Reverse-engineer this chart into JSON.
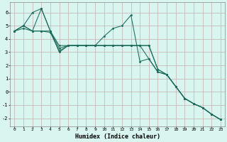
{
  "title": "",
  "xlabel": "Humidex (Indice chaleur)",
  "ylabel": "",
  "bg_color": "#d8f5f0",
  "grid_color": "#c8b8b8",
  "line_color": "#1a6b5a",
  "xlim": [
    -0.5,
    23.5
  ],
  "ylim": [
    -2.6,
    6.8
  ],
  "xticks": [
    0,
    1,
    2,
    3,
    4,
    5,
    6,
    7,
    8,
    9,
    10,
    11,
    12,
    13,
    14,
    15,
    16,
    17,
    18,
    19,
    20,
    21,
    22,
    23
  ],
  "yticks": [
    -2,
    -1,
    0,
    1,
    2,
    3,
    4,
    5,
    6
  ],
  "lines": [
    {
      "x": [
        0,
        1,
        2,
        3,
        4,
        5,
        6,
        7,
        8,
        9,
        10,
        11,
        12,
        13,
        14,
        15,
        16,
        17,
        18,
        19,
        20,
        21,
        22,
        23
      ],
      "y": [
        4.6,
        5.0,
        4.6,
        6.3,
        4.6,
        3.3,
        3.5,
        3.5,
        3.5,
        3.5,
        4.2,
        4.8,
        5.0,
        5.8,
        2.3,
        2.5,
        1.5,
        1.3,
        0.4,
        -0.5,
        -0.9,
        -1.2,
        -1.7,
        -2.1
      ]
    },
    {
      "x": [
        0,
        1,
        2,
        3,
        4,
        5,
        6,
        7,
        8,
        9,
        10,
        11,
        12,
        13,
        14,
        15,
        16,
        17,
        18,
        19,
        20,
        21,
        22,
        23
      ],
      "y": [
        4.6,
        5.0,
        6.0,
        6.3,
        4.6,
        3.0,
        3.5,
        3.5,
        3.5,
        3.5,
        3.5,
        3.5,
        3.5,
        3.5,
        3.5,
        2.5,
        1.5,
        1.3,
        0.4,
        -0.5,
        -0.9,
        -1.2,
        -1.7,
        -2.1
      ]
    },
    {
      "x": [
        0,
        1,
        2,
        3,
        4,
        5,
        6,
        7,
        8,
        9,
        10,
        11,
        12,
        13,
        14,
        15,
        16,
        17,
        18,
        19,
        20,
        21,
        22,
        23
      ],
      "y": [
        4.6,
        4.8,
        4.6,
        4.6,
        4.5,
        3.1,
        3.5,
        3.5,
        3.5,
        3.5,
        3.5,
        3.5,
        3.5,
        3.5,
        3.5,
        3.5,
        1.7,
        1.3,
        0.4,
        -0.5,
        -0.9,
        -1.2,
        -1.7,
        -2.1
      ]
    },
    {
      "x": [
        0,
        1,
        2,
        3,
        4,
        5,
        6,
        7,
        8,
        9,
        10,
        11,
        12,
        13,
        14,
        15,
        16,
        17,
        18,
        19,
        20,
        21,
        22,
        23
      ],
      "y": [
        4.6,
        5.0,
        4.6,
        4.6,
        4.6,
        3.5,
        3.5,
        3.5,
        3.5,
        3.5,
        3.5,
        3.5,
        3.5,
        3.5,
        3.5,
        3.5,
        1.7,
        1.3,
        0.4,
        -0.5,
        -0.9,
        -1.2,
        -1.7,
        -2.1
      ]
    }
  ]
}
